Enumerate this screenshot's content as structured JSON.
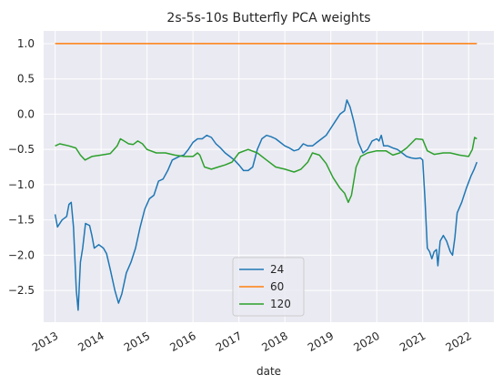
{
  "chart_data": {
    "type": "line",
    "title": "2s-5s-10s Butterfly PCA weights",
    "xlabel": "date",
    "ylabel": "",
    "xlim": [
      2012.75,
      2022.55
    ],
    "ylim": [
      -2.95,
      1.18
    ],
    "grid": true,
    "legend_position": "lower-center",
    "x_ticks": [
      {
        "value": 2013,
        "label": "2013"
      },
      {
        "value": 2014,
        "label": "2014"
      },
      {
        "value": 2015,
        "label": "2015"
      },
      {
        "value": 2016,
        "label": "2016"
      },
      {
        "value": 2017,
        "label": "2017"
      },
      {
        "value": 2018,
        "label": "2018"
      },
      {
        "value": 2019,
        "label": "2019"
      },
      {
        "value": 2020,
        "label": "2020"
      },
      {
        "value": 2021,
        "label": "2021"
      },
      {
        "value": 2022,
        "label": "2022"
      }
    ],
    "y_ticks": [
      {
        "value": 1.0,
        "label": "1.0"
      },
      {
        "value": 0.5,
        "label": "0.5"
      },
      {
        "value": 0.0,
        "label": "0.0"
      },
      {
        "value": -0.5,
        "label": "−0.5"
      },
      {
        "value": -1.0,
        "label": "−1.0"
      },
      {
        "value": -1.5,
        "label": "−1.5"
      },
      {
        "value": -2.0,
        "label": "−2.0"
      },
      {
        "value": -2.5,
        "label": "−2.5"
      }
    ],
    "series": [
      {
        "name": "24",
        "color": "#1f77b4",
        "points": [
          [
            2013.0,
            -1.42
          ],
          [
            2013.05,
            -1.6
          ],
          [
            2013.15,
            -1.5
          ],
          [
            2013.25,
            -1.45
          ],
          [
            2013.3,
            -1.28
          ],
          [
            2013.35,
            -1.25
          ],
          [
            2013.4,
            -1.6
          ],
          [
            2013.46,
            -2.5
          ],
          [
            2013.5,
            -2.78
          ],
          [
            2013.55,
            -2.1
          ],
          [
            2013.6,
            -1.9
          ],
          [
            2013.66,
            -1.55
          ],
          [
            2013.75,
            -1.58
          ],
          [
            2013.8,
            -1.72
          ],
          [
            2013.85,
            -1.9
          ],
          [
            2013.95,
            -1.85
          ],
          [
            2014.05,
            -1.9
          ],
          [
            2014.12,
            -1.98
          ],
          [
            2014.2,
            -2.2
          ],
          [
            2014.3,
            -2.5
          ],
          [
            2014.38,
            -2.68
          ],
          [
            2014.45,
            -2.55
          ],
          [
            2014.55,
            -2.25
          ],
          [
            2014.65,
            -2.1
          ],
          [
            2014.75,
            -1.9
          ],
          [
            2014.85,
            -1.6
          ],
          [
            2014.95,
            -1.35
          ],
          [
            2015.05,
            -1.2
          ],
          [
            2015.15,
            -1.15
          ],
          [
            2015.25,
            -0.95
          ],
          [
            2015.35,
            -0.92
          ],
          [
            2015.45,
            -0.8
          ],
          [
            2015.55,
            -0.65
          ],
          [
            2015.7,
            -0.6
          ],
          [
            2015.8,
            -0.58
          ],
          [
            2015.9,
            -0.5
          ],
          [
            2016.0,
            -0.4
          ],
          [
            2016.1,
            -0.35
          ],
          [
            2016.2,
            -0.35
          ],
          [
            2016.3,
            -0.3
          ],
          [
            2016.4,
            -0.33
          ],
          [
            2016.5,
            -0.42
          ],
          [
            2016.6,
            -0.48
          ],
          [
            2016.7,
            -0.55
          ],
          [
            2016.8,
            -0.6
          ],
          [
            2016.9,
            -0.65
          ],
          [
            2017.0,
            -0.72
          ],
          [
            2017.1,
            -0.8
          ],
          [
            2017.2,
            -0.8
          ],
          [
            2017.3,
            -0.75
          ],
          [
            2017.4,
            -0.5
          ],
          [
            2017.5,
            -0.35
          ],
          [
            2017.6,
            -0.3
          ],
          [
            2017.7,
            -0.32
          ],
          [
            2017.8,
            -0.35
          ],
          [
            2017.9,
            -0.4
          ],
          [
            2018.0,
            -0.45
          ],
          [
            2018.1,
            -0.48
          ],
          [
            2018.2,
            -0.52
          ],
          [
            2018.3,
            -0.5
          ],
          [
            2018.4,
            -0.42
          ],
          [
            2018.5,
            -0.45
          ],
          [
            2018.6,
            -0.45
          ],
          [
            2018.7,
            -0.4
          ],
          [
            2018.8,
            -0.35
          ],
          [
            2018.9,
            -0.3
          ],
          [
            2019.0,
            -0.2
          ],
          [
            2019.1,
            -0.1
          ],
          [
            2019.2,
            0.0
          ],
          [
            2019.3,
            0.05
          ],
          [
            2019.35,
            0.2
          ],
          [
            2019.42,
            0.1
          ],
          [
            2019.5,
            -0.1
          ],
          [
            2019.6,
            -0.4
          ],
          [
            2019.7,
            -0.55
          ],
          [
            2019.8,
            -0.5
          ],
          [
            2019.9,
            -0.38
          ],
          [
            2020.0,
            -0.35
          ],
          [
            2020.05,
            -0.38
          ],
          [
            2020.1,
            -0.3
          ],
          [
            2020.15,
            -0.45
          ],
          [
            2020.25,
            -0.45
          ],
          [
            2020.35,
            -0.48
          ],
          [
            2020.45,
            -0.5
          ],
          [
            2020.55,
            -0.55
          ],
          [
            2020.65,
            -0.6
          ],
          [
            2020.75,
            -0.62
          ],
          [
            2020.85,
            -0.63
          ],
          [
            2020.95,
            -0.62
          ],
          [
            2021.0,
            -0.65
          ],
          [
            2021.05,
            -1.2
          ],
          [
            2021.1,
            -1.9
          ],
          [
            2021.15,
            -1.95
          ],
          [
            2021.2,
            -2.05
          ],
          [
            2021.25,
            -1.95
          ],
          [
            2021.3,
            -1.92
          ],
          [
            2021.33,
            -2.15
          ],
          [
            2021.38,
            -1.8
          ],
          [
            2021.45,
            -1.72
          ],
          [
            2021.52,
            -1.8
          ],
          [
            2021.6,
            -1.95
          ],
          [
            2021.65,
            -2.0
          ],
          [
            2021.7,
            -1.75
          ],
          [
            2021.75,
            -1.4
          ],
          [
            2021.85,
            -1.25
          ],
          [
            2021.95,
            -1.05
          ],
          [
            2022.05,
            -0.88
          ],
          [
            2022.12,
            -0.78
          ],
          [
            2022.18,
            -0.68
          ]
        ]
      },
      {
        "name": "60",
        "color": "#ff7f0e",
        "points": [
          [
            2013.0,
            1.0
          ],
          [
            2022.18,
            1.0
          ]
        ]
      },
      {
        "name": "120",
        "color": "#2ca02c",
        "points": [
          [
            2013.0,
            -0.45
          ],
          [
            2013.1,
            -0.42
          ],
          [
            2013.3,
            -0.45
          ],
          [
            2013.45,
            -0.48
          ],
          [
            2013.55,
            -0.58
          ],
          [
            2013.65,
            -0.65
          ],
          [
            2013.8,
            -0.6
          ],
          [
            2014.0,
            -0.58
          ],
          [
            2014.2,
            -0.56
          ],
          [
            2014.35,
            -0.45
          ],
          [
            2014.42,
            -0.35
          ],
          [
            2014.5,
            -0.38
          ],
          [
            2014.6,
            -0.42
          ],
          [
            2014.7,
            -0.43
          ],
          [
            2014.8,
            -0.38
          ],
          [
            2014.9,
            -0.42
          ],
          [
            2015.0,
            -0.5
          ],
          [
            2015.2,
            -0.55
          ],
          [
            2015.4,
            -0.55
          ],
          [
            2015.6,
            -0.58
          ],
          [
            2015.8,
            -0.6
          ],
          [
            2016.0,
            -0.6
          ],
          [
            2016.1,
            -0.55
          ],
          [
            2016.15,
            -0.58
          ],
          [
            2016.25,
            -0.75
          ],
          [
            2016.4,
            -0.78
          ],
          [
            2016.55,
            -0.75
          ],
          [
            2016.7,
            -0.72
          ],
          [
            2016.85,
            -0.68
          ],
          [
            2017.0,
            -0.55
          ],
          [
            2017.2,
            -0.5
          ],
          [
            2017.4,
            -0.55
          ],
          [
            2017.6,
            -0.65
          ],
          [
            2017.8,
            -0.75
          ],
          [
            2018.0,
            -0.78
          ],
          [
            2018.2,
            -0.82
          ],
          [
            2018.35,
            -0.78
          ],
          [
            2018.5,
            -0.68
          ],
          [
            2018.6,
            -0.55
          ],
          [
            2018.75,
            -0.58
          ],
          [
            2018.9,
            -0.7
          ],
          [
            2019.05,
            -0.9
          ],
          [
            2019.2,
            -1.05
          ],
          [
            2019.3,
            -1.12
          ],
          [
            2019.38,
            -1.25
          ],
          [
            2019.45,
            -1.15
          ],
          [
            2019.55,
            -0.75
          ],
          [
            2019.65,
            -0.6
          ],
          [
            2019.8,
            -0.55
          ],
          [
            2020.0,
            -0.52
          ],
          [
            2020.2,
            -0.52
          ],
          [
            2020.35,
            -0.58
          ],
          [
            2020.5,
            -0.55
          ],
          [
            2020.65,
            -0.48
          ],
          [
            2020.85,
            -0.35
          ],
          [
            2021.0,
            -0.36
          ],
          [
            2021.1,
            -0.52
          ],
          [
            2021.25,
            -0.57
          ],
          [
            2021.45,
            -0.55
          ],
          [
            2021.6,
            -0.55
          ],
          [
            2021.8,
            -0.58
          ],
          [
            2022.0,
            -0.6
          ],
          [
            2022.08,
            -0.5
          ],
          [
            2022.13,
            -0.33
          ],
          [
            2022.18,
            -0.35
          ]
        ]
      }
    ]
  }
}
